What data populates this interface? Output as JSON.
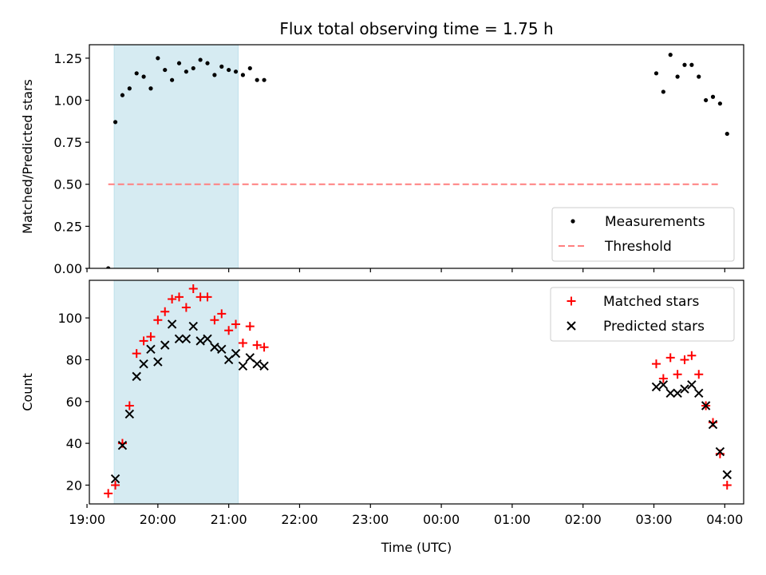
{
  "figure": {
    "title": "Flux total observing time = 1.75 h"
  },
  "colors": {
    "measurements": "#000000",
    "threshold": "#ff7f7f",
    "matched": "#ff0000",
    "predicted": "#000000",
    "span": "#add8e6"
  },
  "chart_data": [
    {
      "type": "scatter",
      "title": "Flux total observing time = 1.75 h",
      "xlabel": "",
      "ylabel": "Matched/Predicted stars",
      "xlim": [
        "19:02",
        "04:16"
      ],
      "ylim": [
        0,
        1.33
      ],
      "yticks": [
        0.0,
        0.25,
        0.5,
        0.75,
        1.0,
        1.25
      ],
      "ytick_labels": [
        "0.00",
        "0.25",
        "0.50",
        "0.75",
        "1.00",
        "1.25"
      ],
      "grid": false,
      "legend_position": "lower-right",
      "shaded_span": [
        "19:23",
        "21:08"
      ],
      "series": [
        {
          "name": "Measurements",
          "marker": "dot",
          "points": [
            [
              "19:18",
              0.0
            ],
            [
              "19:24",
              0.87
            ],
            [
              "19:30",
              1.03
            ],
            [
              "19:36",
              1.07
            ],
            [
              "19:42",
              1.16
            ],
            [
              "19:48",
              1.14
            ],
            [
              "19:54",
              1.07
            ],
            [
              "20:00",
              1.25
            ],
            [
              "20:06",
              1.18
            ],
            [
              "20:12",
              1.12
            ],
            [
              "20:18",
              1.22
            ],
            [
              "20:24",
              1.17
            ],
            [
              "20:30",
              1.19
            ],
            [
              "20:36",
              1.24
            ],
            [
              "20:42",
              1.22
            ],
            [
              "20:48",
              1.15
            ],
            [
              "20:54",
              1.2
            ],
            [
              "21:00",
              1.18
            ],
            [
              "21:06",
              1.17
            ],
            [
              "21:12",
              1.15
            ],
            [
              "21:18",
              1.19
            ],
            [
              "21:24",
              1.12
            ],
            [
              "21:30",
              1.12
            ],
            [
              "03:02",
              1.16
            ],
            [
              "03:08",
              1.05
            ],
            [
              "03:14",
              1.27
            ],
            [
              "03:20",
              1.14
            ],
            [
              "03:26",
              1.21
            ],
            [
              "03:32",
              1.21
            ],
            [
              "03:38",
              1.14
            ],
            [
              "03:44",
              1.0
            ],
            [
              "03:50",
              1.02
            ],
            [
              "03:56",
              0.98
            ],
            [
              "04:02",
              0.8
            ]
          ]
        },
        {
          "name": "Threshold",
          "style": "dashed-line",
          "points": [
            [
              "19:18",
              0.5
            ],
            [
              "03:56",
              0.5
            ]
          ]
        }
      ]
    },
    {
      "type": "scatter",
      "title": "",
      "xlabel": "Time (UTC)",
      "ylabel": "Count",
      "xlim": [
        "19:02",
        "04:16"
      ],
      "ylim": [
        11,
        118
      ],
      "yticks": [
        20,
        40,
        60,
        80,
        100
      ],
      "ytick_labels": [
        "20",
        "40",
        "60",
        "80",
        "100"
      ],
      "xticks": [
        "19:00",
        "20:00",
        "21:00",
        "22:00",
        "23:00",
        "00:00",
        "01:00",
        "02:00",
        "03:00",
        "04:00"
      ],
      "grid": false,
      "legend_position": "upper-right",
      "shaded_span": [
        "19:23",
        "21:08"
      ],
      "series": [
        {
          "name": "Matched stars",
          "marker": "plus",
          "points": [
            [
              "19:18",
              16
            ],
            [
              "19:24",
              20
            ],
            [
              "19:30",
              40
            ],
            [
              "19:36",
              58
            ],
            [
              "19:42",
              83
            ],
            [
              "19:48",
              89
            ],
            [
              "19:54",
              91
            ],
            [
              "20:00",
              99
            ],
            [
              "20:06",
              103
            ],
            [
              "20:12",
              109
            ],
            [
              "20:18",
              110
            ],
            [
              "20:24",
              105
            ],
            [
              "20:30",
              114
            ],
            [
              "20:36",
              110
            ],
            [
              "20:42",
              110
            ],
            [
              "20:48",
              99
            ],
            [
              "20:54",
              102
            ],
            [
              "21:00",
              94
            ],
            [
              "21:06",
              97
            ],
            [
              "21:12",
              88
            ],
            [
              "21:18",
              96
            ],
            [
              "21:24",
              87
            ],
            [
              "21:30",
              86
            ],
            [
              "03:02",
              78
            ],
            [
              "03:08",
              71
            ],
            [
              "03:14",
              81
            ],
            [
              "03:20",
              73
            ],
            [
              "03:26",
              80
            ],
            [
              "03:32",
              82
            ],
            [
              "03:38",
              73
            ],
            [
              "03:44",
              58
            ],
            [
              "03:50",
              50
            ],
            [
              "03:56",
              35
            ],
            [
              "04:02",
              20
            ]
          ]
        },
        {
          "name": "Predicted stars",
          "marker": "x",
          "points": [
            [
              "19:24",
              23
            ],
            [
              "19:30",
              39
            ],
            [
              "19:36",
              54
            ],
            [
              "19:42",
              72
            ],
            [
              "19:48",
              78
            ],
            [
              "19:54",
              85
            ],
            [
              "20:00",
              79
            ],
            [
              "20:06",
              87
            ],
            [
              "20:12",
              97
            ],
            [
              "20:18",
              90
            ],
            [
              "20:24",
              90
            ],
            [
              "20:30",
              96
            ],
            [
              "20:36",
              89
            ],
            [
              "20:42",
              90
            ],
            [
              "20:48",
              86
            ],
            [
              "20:54",
              85
            ],
            [
              "21:00",
              80
            ],
            [
              "21:06",
              83
            ],
            [
              "21:12",
              77
            ],
            [
              "21:18",
              81
            ],
            [
              "21:24",
              78
            ],
            [
              "21:30",
              77
            ],
            [
              "03:02",
              67
            ],
            [
              "03:08",
              68
            ],
            [
              "03:14",
              64
            ],
            [
              "03:20",
              64
            ],
            [
              "03:26",
              66
            ],
            [
              "03:32",
              68
            ],
            [
              "03:38",
              64
            ],
            [
              "03:44",
              58
            ],
            [
              "03:50",
              49
            ],
            [
              "03:56",
              36
            ],
            [
              "04:02",
              25
            ]
          ]
        }
      ]
    }
  ]
}
